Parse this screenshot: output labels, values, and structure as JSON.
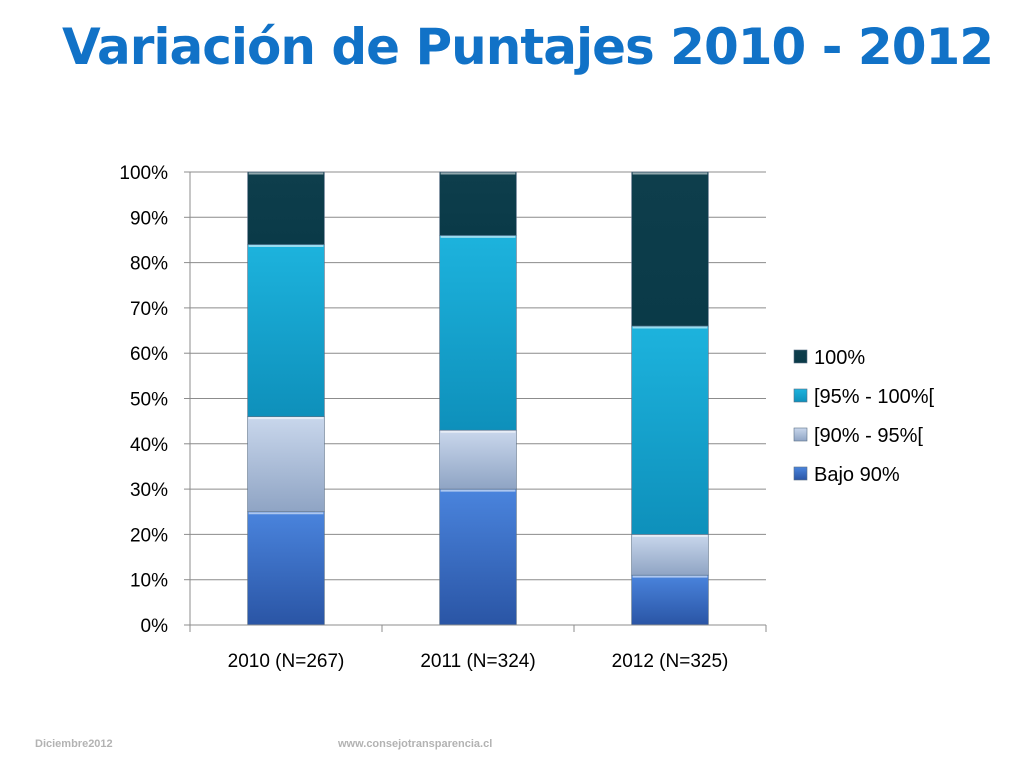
{
  "slide": {
    "title": "Variación de Puntajes 2010 - 2012"
  },
  "footer": {
    "date": "Diciembre2012",
    "website": "www.consejotransparencia.cl"
  },
  "chart_data": {
    "type": "bar",
    "stacked": "percent",
    "title": "",
    "xlabel": "",
    "ylabel": "",
    "ylim": [
      0,
      100
    ],
    "y_ticks": [
      "0%",
      "10%",
      "20%",
      "30%",
      "40%",
      "50%",
      "60%",
      "70%",
      "80%",
      "90%",
      "100%"
    ],
    "grid": true,
    "legend_position": "right",
    "categories": [
      "2010 (N=267)",
      "2011 (N=324)",
      "2012 (N=325)"
    ],
    "series": [
      {
        "name": "Bajo 90%",
        "values": [
          25,
          30,
          11
        ],
        "color": "#3b6fc7"
      },
      {
        "name": "[90% - 95%[",
        "values": [
          21,
          13,
          9
        ],
        "color": "#b4c5de"
      },
      {
        "name": "[95% - 100%[",
        "values": [
          38,
          43,
          46
        ],
        "color": "#16a4cf"
      },
      {
        "name": "100%",
        "values": [
          16,
          14,
          34
        ],
        "color": "#0f4454"
      }
    ],
    "legend_order": [
      "100%",
      "[95% - 100%[",
      "[90% - 95%[",
      "Bajo 90%"
    ]
  }
}
